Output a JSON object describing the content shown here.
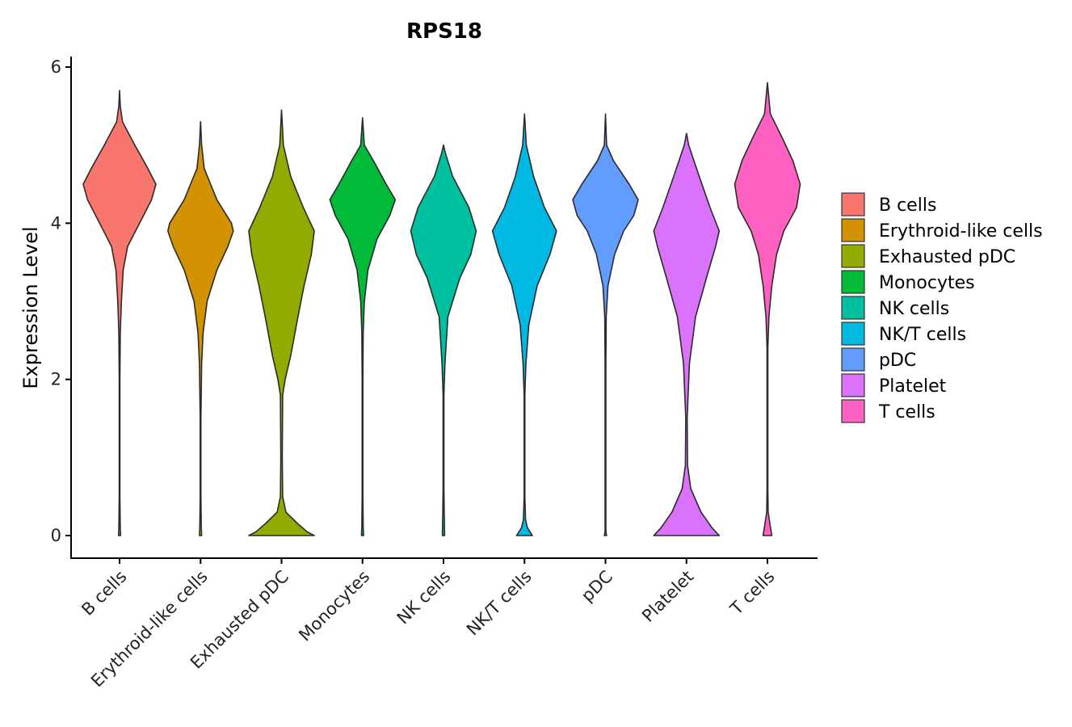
{
  "chart_data": {
    "type": "violin",
    "title": "RPS18",
    "xlabel": "",
    "ylabel": "Expression Level",
    "ylim": [
      -0.3,
      6.1
    ],
    "yticks": [
      0,
      2,
      4,
      6
    ],
    "legend_position": "right",
    "categories": [
      "B cells",
      "Erythroid-like cells",
      "Exhausted pDC",
      "Monocytes",
      "NK cells",
      "NK/T cells",
      "pDC",
      "Platelet",
      "T cells"
    ],
    "colors": [
      "#F8766D",
      "#D39200",
      "#93AA00",
      "#00BA38",
      "#00C19F",
      "#00B9E3",
      "#619CFF",
      "#DB72FB",
      "#FF61C3"
    ],
    "series": [
      {
        "name": "B cells",
        "max": 5.7,
        "profile": [
          [
            0,
            0.03
          ],
          [
            0.08,
            0.02
          ],
          [
            0.5,
            0.01
          ],
          [
            2.0,
            0.01
          ],
          [
            2.6,
            0.02
          ],
          [
            3.0,
            0.05
          ],
          [
            3.4,
            0.1
          ],
          [
            3.7,
            0.22
          ],
          [
            4.0,
            0.55
          ],
          [
            4.3,
            0.88
          ],
          [
            4.5,
            1.0
          ],
          [
            4.7,
            0.78
          ],
          [
            5.0,
            0.42
          ],
          [
            5.3,
            0.08
          ],
          [
            5.5,
            0.02
          ],
          [
            5.7,
            0.0
          ]
        ]
      },
      {
        "name": "Erythroid-like cells",
        "max": 5.3,
        "profile": [
          [
            0,
            0.03
          ],
          [
            0.1,
            0.02
          ],
          [
            0.5,
            0.01
          ],
          [
            1.5,
            0.01
          ],
          [
            2.2,
            0.03
          ],
          [
            2.6,
            0.07
          ],
          [
            3.0,
            0.18
          ],
          [
            3.4,
            0.45
          ],
          [
            3.7,
            0.75
          ],
          [
            3.9,
            0.9
          ],
          [
            4.0,
            0.85
          ],
          [
            4.3,
            0.45
          ],
          [
            4.7,
            0.1
          ],
          [
            5.0,
            0.03
          ],
          [
            5.3,
            0.0
          ]
        ]
      },
      {
        "name": "Exhausted pDC",
        "max": 5.45,
        "profile": [
          [
            0,
            0.9
          ],
          [
            0.05,
            0.7
          ],
          [
            0.15,
            0.45
          ],
          [
            0.3,
            0.12
          ],
          [
            0.5,
            0.03
          ],
          [
            1.0,
            0.02
          ],
          [
            1.8,
            0.03
          ],
          [
            2.0,
            0.1
          ],
          [
            2.3,
            0.25
          ],
          [
            2.8,
            0.45
          ],
          [
            3.2,
            0.62
          ],
          [
            3.6,
            0.82
          ],
          [
            3.9,
            0.9
          ],
          [
            4.2,
            0.6
          ],
          [
            4.6,
            0.25
          ],
          [
            5.0,
            0.05
          ],
          [
            5.45,
            0.0
          ]
        ]
      },
      {
        "name": "Monocytes",
        "max": 5.35,
        "profile": [
          [
            0,
            0.03
          ],
          [
            0.1,
            0.02
          ],
          [
            0.5,
            0.01
          ],
          [
            2.0,
            0.01
          ],
          [
            2.6,
            0.02
          ],
          [
            3.0,
            0.05
          ],
          [
            3.4,
            0.15
          ],
          [
            3.8,
            0.4
          ],
          [
            4.1,
            0.75
          ],
          [
            4.3,
            0.9
          ],
          [
            4.5,
            0.65
          ],
          [
            4.8,
            0.3
          ],
          [
            5.0,
            0.05
          ],
          [
            5.35,
            0.0
          ]
        ]
      },
      {
        "name": "NK cells",
        "max": 5.0,
        "profile": [
          [
            0,
            0.03
          ],
          [
            0.3,
            0.02
          ],
          [
            0.6,
            0.01
          ],
          [
            1.8,
            0.01
          ],
          [
            2.2,
            0.04
          ],
          [
            2.8,
            0.12
          ],
          [
            3.3,
            0.45
          ],
          [
            3.6,
            0.75
          ],
          [
            3.9,
            0.9
          ],
          [
            4.2,
            0.7
          ],
          [
            4.6,
            0.25
          ],
          [
            4.9,
            0.05
          ],
          [
            5.0,
            0.0
          ]
        ]
      },
      {
        "name": "NK/T cells",
        "max": 5.4,
        "profile": [
          [
            0,
            0.22
          ],
          [
            0.1,
            0.08
          ],
          [
            0.2,
            0.03
          ],
          [
            0.5,
            0.01
          ],
          [
            1.8,
            0.01
          ],
          [
            2.2,
            0.04
          ],
          [
            2.7,
            0.12
          ],
          [
            3.2,
            0.35
          ],
          [
            3.6,
            0.7
          ],
          [
            3.9,
            0.88
          ],
          [
            4.2,
            0.55
          ],
          [
            4.6,
            0.25
          ],
          [
            5.0,
            0.05
          ],
          [
            5.4,
            0.0
          ]
        ]
      },
      {
        "name": "pDC",
        "max": 5.4,
        "profile": [
          [
            0,
            0.03
          ],
          [
            0.05,
            0.01
          ],
          [
            0.5,
            0.01
          ],
          [
            2.2,
            0.01
          ],
          [
            2.8,
            0.02
          ],
          [
            3.2,
            0.07
          ],
          [
            3.6,
            0.25
          ],
          [
            3.9,
            0.5
          ],
          [
            4.1,
            0.78
          ],
          [
            4.3,
            0.9
          ],
          [
            4.5,
            0.65
          ],
          [
            4.8,
            0.22
          ],
          [
            5.0,
            0.03
          ],
          [
            5.4,
            0.0
          ]
        ]
      },
      {
        "name": "Platelet",
        "max": 5.15,
        "profile": [
          [
            0,
            0.9
          ],
          [
            0.1,
            0.7
          ],
          [
            0.3,
            0.4
          ],
          [
            0.6,
            0.12
          ],
          [
            0.9,
            0.03
          ],
          [
            1.5,
            0.02
          ],
          [
            2.2,
            0.08
          ],
          [
            2.8,
            0.25
          ],
          [
            3.3,
            0.55
          ],
          [
            3.7,
            0.8
          ],
          [
            3.9,
            0.9
          ],
          [
            4.2,
            0.65
          ],
          [
            4.6,
            0.35
          ],
          [
            5.0,
            0.06
          ],
          [
            5.15,
            0.0
          ]
        ]
      },
      {
        "name": "T cells",
        "max": 5.8,
        "profile": [
          [
            0,
            0.12
          ],
          [
            0.15,
            0.07
          ],
          [
            0.3,
            0.02
          ],
          [
            0.6,
            0.01
          ],
          [
            2.4,
            0.01
          ],
          [
            2.8,
            0.04
          ],
          [
            3.2,
            0.12
          ],
          [
            3.6,
            0.25
          ],
          [
            3.9,
            0.45
          ],
          [
            4.2,
            0.8
          ],
          [
            4.5,
            0.9
          ],
          [
            4.8,
            0.7
          ],
          [
            5.1,
            0.4
          ],
          [
            5.4,
            0.08
          ],
          [
            5.8,
            0.0
          ]
        ]
      }
    ]
  }
}
